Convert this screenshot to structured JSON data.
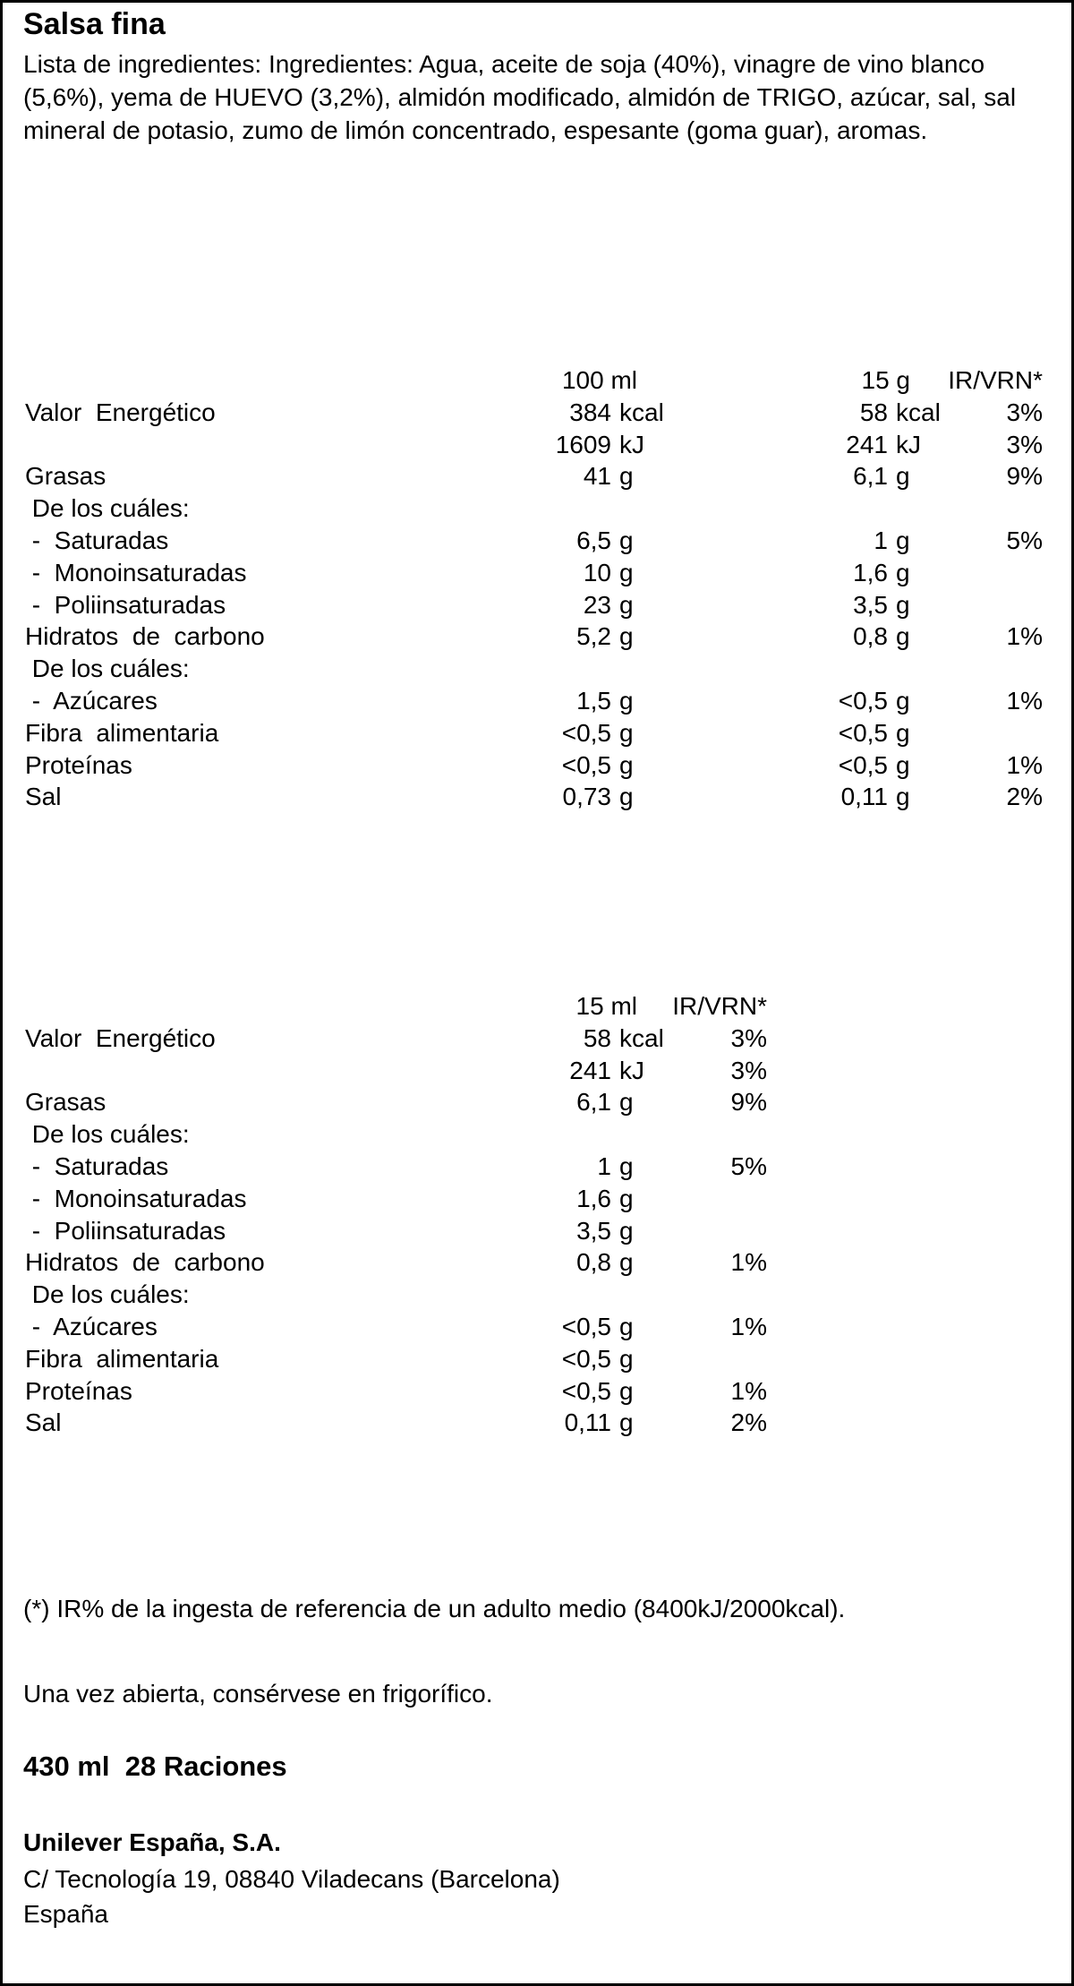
{
  "title": "Salsa fina",
  "ingredients": "Lista de ingredientes: Ingredientes: Agua, aceite de soja (40%), vinagre de vino blanco (5,6%), yema de HUEVO (3,2%), almidón modificado, almidón de TRIGO, azúcar, sal, sal mineral de potasio, zumo de limón concentrado, espesante (goma guar), aromas.",
  "table1": {
    "header": {
      "col1": "100 ml",
      "col2": "15 g",
      "ir": "IR/VRN*"
    },
    "rows": [
      {
        "label": "Valor  Energético",
        "col1": "384",
        "col1_unit": "kcal",
        "col2": "58",
        "col2_unit": "kcal",
        "ir": "3%"
      },
      {
        "col1": "1609",
        "col1_unit": "kJ",
        "col2": "241",
        "col2_unit": "kJ",
        "ir": "3%"
      },
      {
        "label": "Grasas",
        "col1": "41",
        "col1_unit": "g",
        "col2": "6,1",
        "col2_unit": "g",
        "ir": "9%"
      },
      {
        "label": " De los cuáles:"
      },
      {
        "label": " -  Saturadas",
        "col1": "6,5",
        "col1_unit": "g",
        "col2": "1",
        "col2_unit": "g",
        "ir": "5%"
      },
      {
        "label": " -  Monoinsaturadas",
        "col1": "10",
        "col1_unit": "g",
        "col2": "1,6",
        "col2_unit": "g"
      },
      {
        "label": " -  Poliinsaturadas",
        "col1": "23",
        "col1_unit": "g",
        "col2": "3,5",
        "col2_unit": "g"
      },
      {
        "label": "Hidratos  de  carbono",
        "col1": "5,2",
        "col1_unit": "g",
        "col2": "0,8",
        "col2_unit": "g",
        "ir": "1%"
      },
      {
        "label": " De los cuáles:"
      },
      {
        "label": " -  Azúcares",
        "col1": "1,5",
        "col1_unit": "g",
        "col2": "<0,5",
        "col2_unit": "g",
        "ir": "1%"
      },
      {
        "label": "Fibra  alimentaria",
        "col1": "<0,5",
        "col1_unit": "g",
        "col2": "<0,5",
        "col2_unit": "g"
      },
      {
        "label": "Proteínas",
        "col1": "<0,5",
        "col1_unit": "g",
        "col2": "<0,5",
        "col2_unit": "g",
        "ir": "1%"
      },
      {
        "label": "Sal",
        "col1": "0,73",
        "col1_unit": "g",
        "col2": "0,11",
        "col2_unit": "g",
        "ir": "2%"
      }
    ]
  },
  "table2": {
    "header": {
      "col1": "15 ml",
      "ir": "IR/VRN*"
    },
    "rows": [
      {
        "label": "Valor  Energético",
        "col1": "58",
        "col1_unit": "kcal",
        "ir": "3%"
      },
      {
        "col1": "241",
        "col1_unit": "kJ",
        "ir": "3%"
      },
      {
        "label": "Grasas",
        "col1": "6,1",
        "col1_unit": "g",
        "ir": "9%"
      },
      {
        "label": " De los cuáles:"
      },
      {
        "label": " -  Saturadas",
        "col1": "1",
        "col1_unit": "g",
        "ir": "5%"
      },
      {
        "label": " -  Monoinsaturadas",
        "col1": "1,6",
        "col1_unit": "g"
      },
      {
        "label": " -  Poliinsaturadas",
        "col1": "3,5",
        "col1_unit": "g"
      },
      {
        "label": "Hidratos  de  carbono",
        "col1": "0,8",
        "col1_unit": "g",
        "ir": "1%"
      },
      {
        "label": " De los cuáles:"
      },
      {
        "label": " -  Azúcares",
        "col1": "<0,5",
        "col1_unit": "g",
        "ir": "1%"
      },
      {
        "label": "Fibra  alimentaria",
        "col1": "<0,5",
        "col1_unit": "g"
      },
      {
        "label": "Proteínas",
        "col1": "<0,5",
        "col1_unit": "g",
        "ir": "1%"
      },
      {
        "label": "Sal",
        "col1": "0,11",
        "col1_unit": "g",
        "ir": "2%"
      }
    ]
  },
  "footnote": "(*) IR% de la ingesta de referencia de un adulto medio (8400kJ/2000kcal).",
  "storage": "Una vez abierta, consérvese en frigorífico.",
  "quantity": "430 ml  28 Raciones",
  "company": {
    "name": "Unilever España, S.A.",
    "address": "C/ Tecnología 19, 08840 Viladecans (Barcelona)",
    "country": "España"
  }
}
